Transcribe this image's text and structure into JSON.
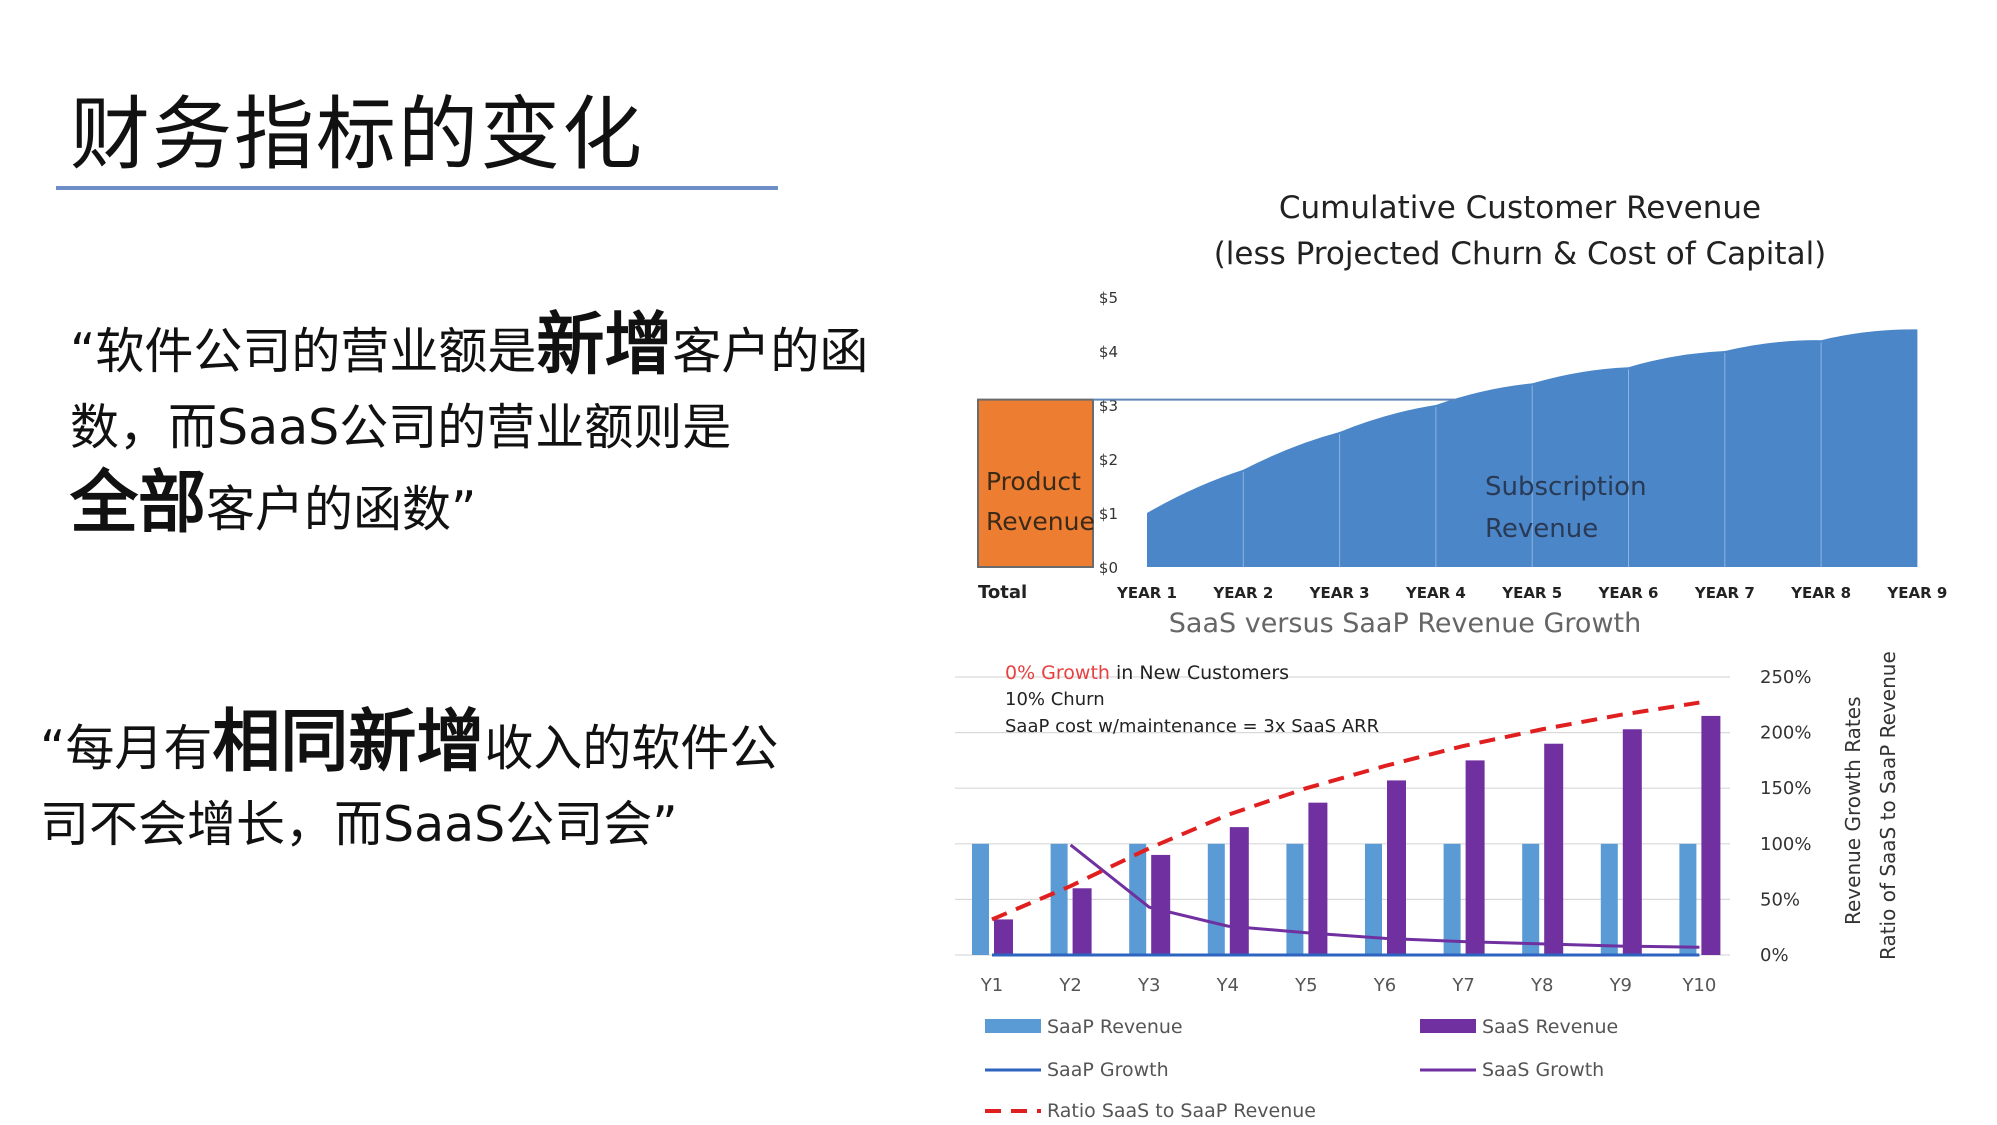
{
  "slide": {
    "title": "财务指标的变化",
    "quote1": {
      "p1": "“软件公司的营业额是",
      "b1": "新增",
      "p2": "客户的函数，而SaaS公司的营业额则是",
      "b2": "全部",
      "p3": "客户的函数”"
    },
    "quote2": {
      "p1": "“每月有",
      "b1": "相同新增",
      "p2": "收入的软件公司不会增长，而SaaS公司会”"
    }
  },
  "colors": {
    "product": "#ed7d31",
    "subscription": "#4a86c8",
    "saap_bar": "#5b9bd5",
    "saas_bar": "#7030a0",
    "ratio": "#e02020",
    "growth_text": "#e84040"
  },
  "chart_data": [
    {
      "type": "area",
      "title": "Cumulative Customer Revenue",
      "subtitle": "(less Projected Churn & Cost of Capital)",
      "total_label": "Total",
      "product_label": "Product Revenue",
      "product_value": 3.1,
      "subscription_label": "Subscription Revenue",
      "categories": [
        "YEAR 1",
        "YEAR 2",
        "YEAR 3",
        "YEAR 4",
        "YEAR 5",
        "YEAR 6",
        "YEAR 7",
        "YEAR 8",
        "YEAR 9"
      ],
      "values": [
        1.0,
        1.8,
        2.5,
        3.0,
        3.4,
        3.7,
        4.0,
        4.2,
        4.4
      ],
      "y_ticks": [
        "$0",
        "$1",
        "$2",
        "$3",
        "$4",
        "$5"
      ],
      "ylim": [
        0,
        5
      ],
      "grid": false
    },
    {
      "type": "bar",
      "title": "SaaS versus SaaP Revenue Growth",
      "annotation": {
        "growth": "0% Growth",
        "growth_rest": " in New Customers",
        "churn": "10% Churn",
        "cost": "SaaP cost w/maintenance = 3x SaaS ARR"
      },
      "categories": [
        "Y1",
        "Y2",
        "Y3",
        "Y4",
        "Y5",
        "Y6",
        "Y7",
        "Y8",
        "Y9",
        "Y10"
      ],
      "right_axis_labels": [
        "Revenue Growth Rates",
        "Ratio of SaaS to SaaP Revenue"
      ],
      "y_ticks": [
        "0%",
        "50%",
        "100%",
        "150%",
        "200%",
        "250%"
      ],
      "ylim": [
        0,
        2.5
      ],
      "grid": true,
      "series": [
        {
          "name": "SaaP Revenue",
          "kind": "bar",
          "values": [
            1,
            1,
            1,
            1,
            1,
            1,
            1,
            1,
            1,
            1
          ]
        },
        {
          "name": "SaaS Revenue",
          "kind": "bar",
          "values": [
            0.32,
            0.6,
            0.9,
            1.15,
            1.37,
            1.57,
            1.75,
            1.9,
            2.03,
            2.15
          ]
        },
        {
          "name": "SaaP Growth",
          "kind": "line",
          "values": [
            0,
            0,
            0,
            0,
            0,
            0,
            0,
            0,
            0,
            0
          ]
        },
        {
          "name": "SaaS Growth",
          "kind": "line",
          "values": [
            null,
            0.99,
            0.43,
            0.26,
            0.2,
            0.15,
            0.12,
            0.1,
            0.08,
            0.07
          ]
        },
        {
          "name": "Ratio SaaS to SaaP Revenue",
          "kind": "dashed",
          "values": [
            0.32,
            0.62,
            0.96,
            1.26,
            1.5,
            1.7,
            1.88,
            2.03,
            2.16,
            2.27
          ]
        }
      ]
    }
  ]
}
